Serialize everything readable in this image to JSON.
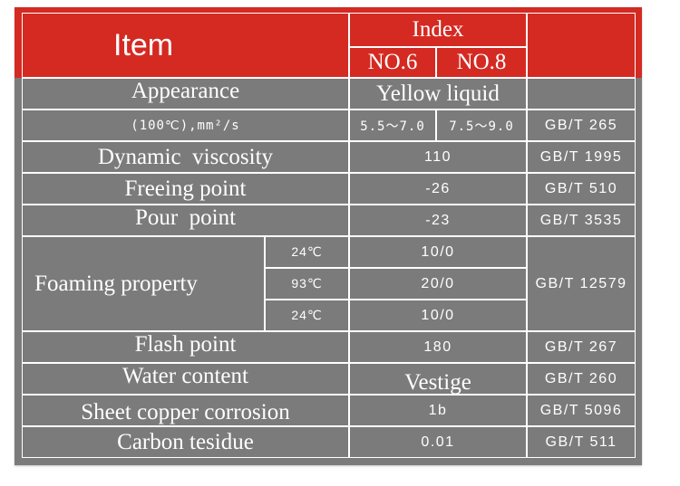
{
  "header": {
    "item": "Item",
    "index": "Index",
    "no6": "NO.6",
    "no8": "NO.8"
  },
  "rows": {
    "appearance": {
      "label": "Appearance",
      "value": "Yellow liquid"
    },
    "kinematic": {
      "label": "(100℃),mm²/s",
      "no6": "5.5～7.0",
      "no8": "7.5～9.0",
      "std": "GB/T 265"
    },
    "dynamic": {
      "label": "Dynamic  viscosity",
      "value": "110",
      "std": "GB/T 1995"
    },
    "freeing": {
      "label": "Freeing point",
      "value": "-26",
      "std": "GB/T 510"
    },
    "pour": {
      "label": "Pour  point",
      "value": "-23",
      "std": "GB/T 3535"
    },
    "foaming": {
      "label": "Foaming property",
      "std": "GB/T 12579",
      "sub": [
        {
          "temp": "24℃",
          "value": "10/0"
        },
        {
          "temp": "93℃",
          "value": "20/0"
        },
        {
          "temp": "24℃",
          "value": "10/0"
        }
      ]
    },
    "flash": {
      "label": "Flash point",
      "value": "180",
      "std": "GB/T 267"
    },
    "water": {
      "label": "Water content",
      "value": "Vestige",
      "std": "GB/T 260"
    },
    "copper": {
      "label": "Sheet copper corrosion",
      "value": "1b",
      "std": "GB/T 5096"
    },
    "carbon": {
      "label": "Carbon tesidue",
      "value": "0.01",
      "std": "GB/T 511"
    }
  },
  "colors": {
    "header_red": "#d42a22",
    "body_gray": "#7b7b7b",
    "grid_white": "#ffffff"
  }
}
